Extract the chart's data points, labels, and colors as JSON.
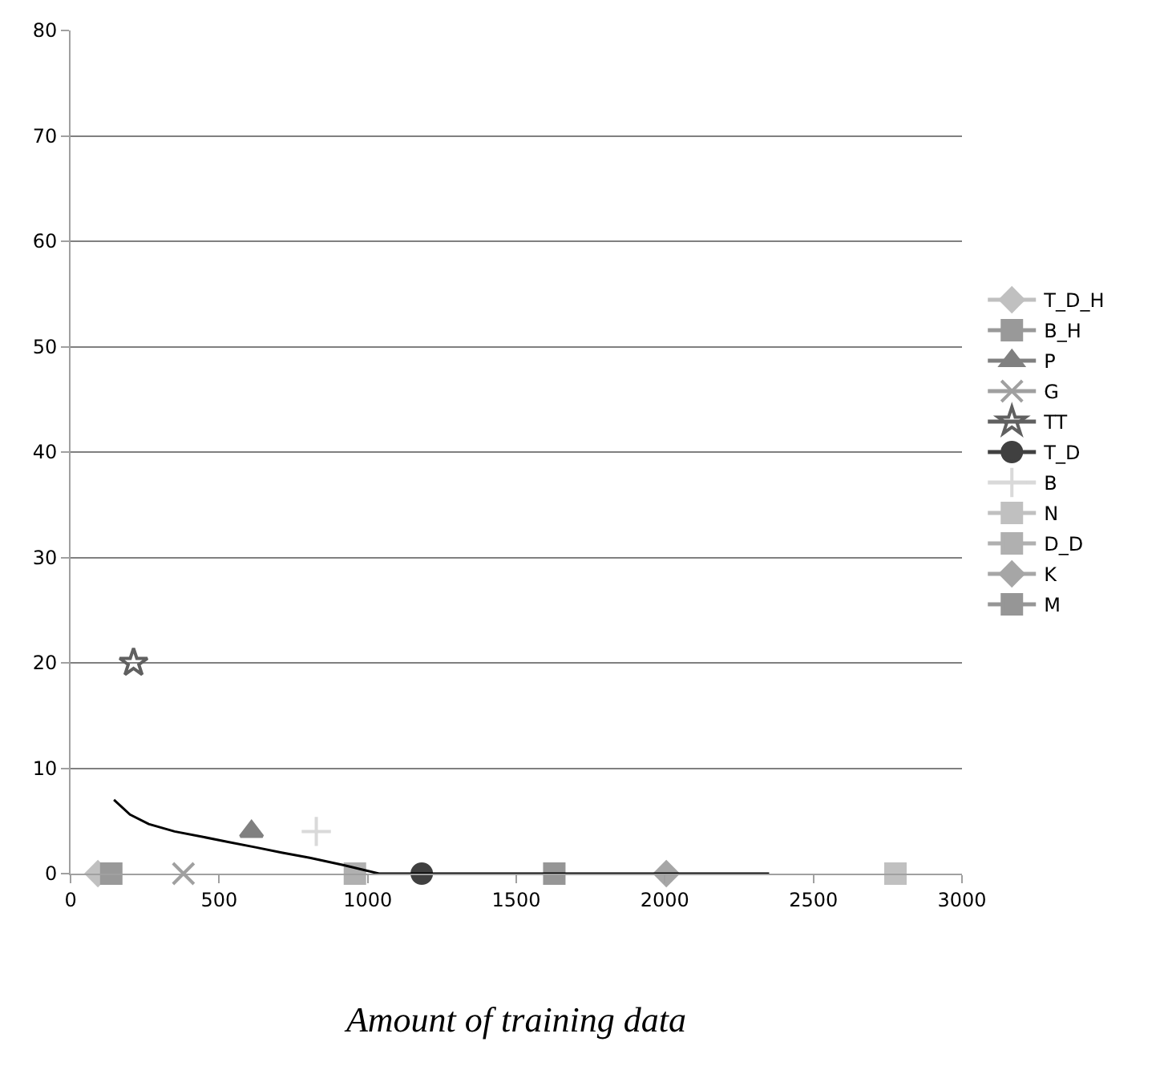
{
  "chart_data": {
    "type": "scatter",
    "xlabel": "Amount of training data",
    "xlim": [
      0,
      3000
    ],
    "xticks": [
      0,
      500,
      1000,
      1500,
      2000,
      2500,
      3000
    ],
    "ylim": [
      0,
      80
    ],
    "yticks": [
      0,
      10,
      20,
      30,
      40,
      50,
      60,
      70,
      80
    ],
    "grid": "y",
    "legend": "right",
    "series": [
      {
        "name": "T_D_H",
        "color": "#c0c0c0",
        "marker": "diamond",
        "x": [
          92
        ],
        "values": [
          0
        ]
      },
      {
        "name": "B_H",
        "color": "#999999",
        "marker": "square",
        "x": [
          137
        ],
        "values": [
          0
        ]
      },
      {
        "name": "P",
        "color": "#808080",
        "marker": "triangle",
        "x": [
          609
        ],
        "values": [
          4
        ]
      },
      {
        "name": "G",
        "color": "#a0a0a0",
        "marker": "x",
        "x": [
          380
        ],
        "values": [
          0
        ]
      },
      {
        "name": "TT",
        "color": "#606060",
        "marker": "star",
        "x": [
          212
        ],
        "values": [
          20
        ]
      },
      {
        "name": "T_D",
        "color": "#404040",
        "marker": "circle",
        "x": [
          1182
        ],
        "values": [
          0
        ]
      },
      {
        "name": "B",
        "color": "#d9d9d9",
        "marker": "cross",
        "x": [
          827
        ],
        "values": [
          4
        ]
      },
      {
        "name": "N",
        "color": "#c0c0c0",
        "marker": "square",
        "x": [
          2776
        ],
        "values": [
          0
        ]
      },
      {
        "name": "D_D",
        "color": "#b0b0b0",
        "marker": "square",
        "x": [
          957
        ],
        "values": [
          0
        ]
      },
      {
        "name": "K",
        "color": "#a6a6a6",
        "marker": "diamond",
        "x": [
          2005
        ],
        "values": [
          0
        ]
      },
      {
        "name": "M",
        "color": "#969696",
        "marker": "square",
        "x": [
          1628
        ],
        "values": [
          0
        ]
      },
      {
        "type": "line",
        "color": "#000000",
        "marker": "none",
        "x": [
          146,
          200,
          263,
          350,
          443,
          530,
          622,
          710,
          805,
          920,
          1038,
          2351
        ],
        "values": [
          7.0,
          5.6,
          4.7,
          4.0,
          3.5,
          3.0,
          2.5,
          2.0,
          1.5,
          0.8,
          0,
          0
        ]
      }
    ]
  }
}
